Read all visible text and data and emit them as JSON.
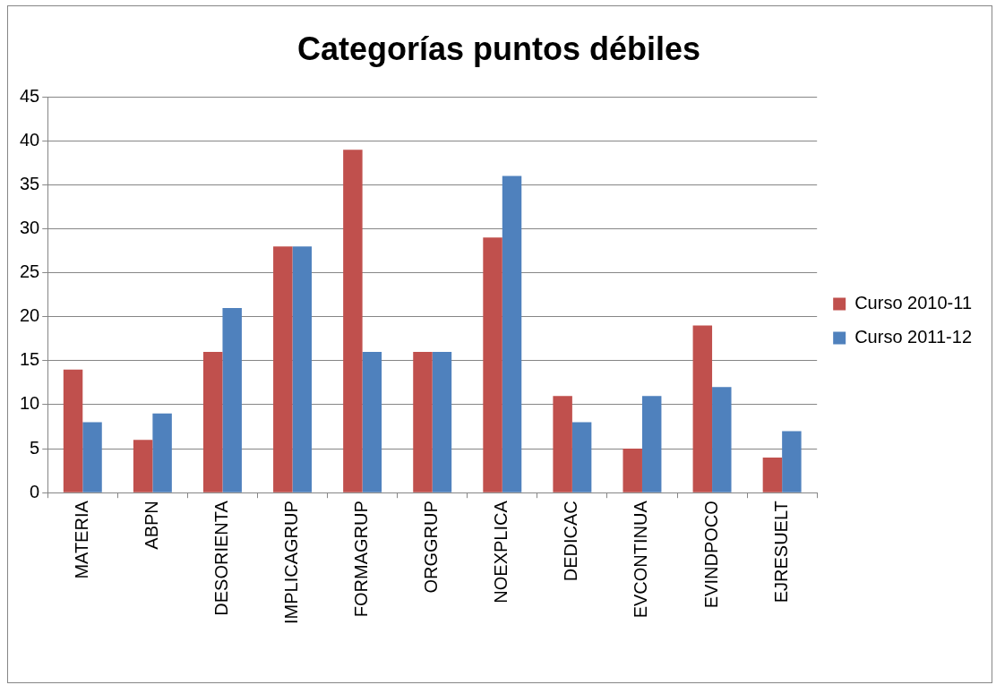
{
  "chart_data": {
    "type": "bar",
    "title": "Categorías puntos débiles",
    "categories": [
      "MATERIA",
      "ABPN",
      "DESORIENTA",
      "IMPLICAGRUP",
      "FORMAGRUP",
      "ORGGRUP",
      "NOEXPLICA",
      "DEDICAC",
      "EVCONTINUA",
      "EVINDPOCO",
      "EJRESUELT"
    ],
    "series": [
      {
        "name": "Curso 2010-11",
        "color": "#c0504d",
        "values": [
          14,
          6,
          16,
          28,
          39,
          16,
          29,
          11,
          5,
          19,
          4
        ]
      },
      {
        "name": "Curso 2011-12",
        "color": "#4f81bd",
        "values": [
          8,
          9,
          21,
          28,
          16,
          16,
          36,
          8,
          11,
          12,
          7
        ]
      }
    ],
    "ylim": [
      0,
      45
    ],
    "yticks": [
      0,
      5,
      10,
      15,
      20,
      25,
      30,
      35,
      40,
      45
    ],
    "grid": "y",
    "legend": "right"
  }
}
